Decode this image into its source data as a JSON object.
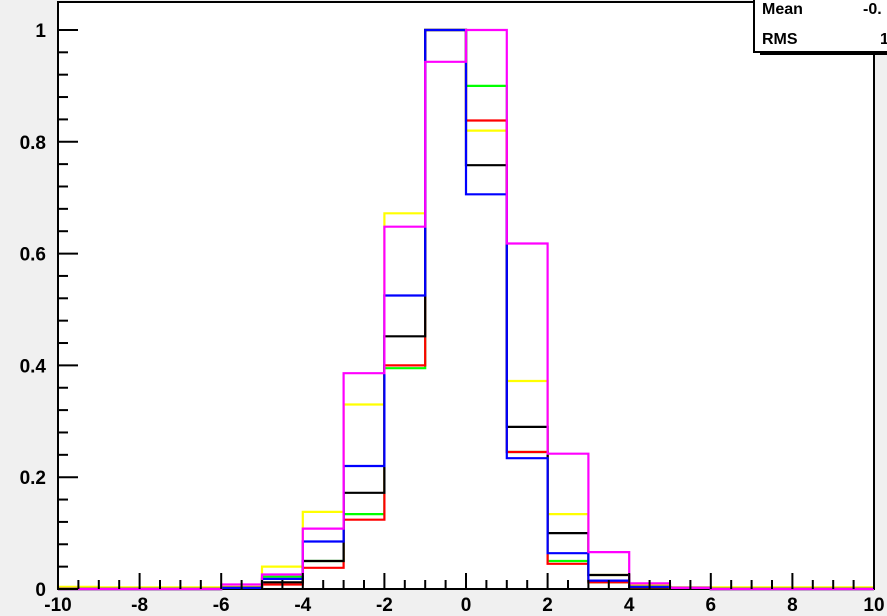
{
  "chart_data": {
    "type": "histogram",
    "title": "",
    "xlabel": "",
    "ylabel": "",
    "xlim": [
      -10,
      10
    ],
    "ylim": [
      0,
      1.05
    ],
    "grid": false,
    "x_ticks": [
      -10,
      -8,
      -6,
      -4,
      -2,
      0,
      2,
      4,
      6,
      8,
      10
    ],
    "x_tick_labels": [
      "-10",
      "-8",
      "-6",
      "-4",
      "-2",
      "0",
      "2",
      "4",
      "6",
      "8",
      "10"
    ],
    "y_ticks": [
      0,
      0.2,
      0.4,
      0.6,
      0.8,
      1
    ],
    "y_tick_labels": [
      "0",
      "0.2",
      "0.4",
      "0.6",
      "0.8",
      "1"
    ],
    "bin_edges": [
      -10,
      -9,
      -8,
      -7,
      -6,
      -5,
      -4,
      -3,
      -2,
      -1,
      0,
      1,
      2,
      3,
      4,
      5,
      6,
      7,
      8,
      9,
      10
    ],
    "series": [
      {
        "color": "#ffff00",
        "values": [
          0.004,
          0.003,
          0.003,
          0.003,
          0.004,
          0.04,
          0.138,
          0.33,
          0.672,
          1.0,
          0.82,
          0.372,
          0.134,
          0.025,
          0.006,
          0.003,
          0.003,
          0.003,
          0.003,
          0.003
        ]
      },
      {
        "color": "#00ff00",
        "values": [
          0.0,
          0.0,
          0.0,
          0.0,
          0.002,
          0.022,
          0.05,
          0.134,
          0.395,
          1.0,
          0.9,
          0.245,
          0.05,
          0.012,
          0.003,
          0.001,
          0.0,
          0.0,
          0.0,
          0.0
        ]
      },
      {
        "color": "#ff0000",
        "values": [
          0.0,
          0.0,
          0.0,
          0.0,
          0.002,
          0.008,
          0.038,
          0.124,
          0.4,
          1.0,
          0.838,
          0.245,
          0.045,
          0.012,
          0.003,
          0.002,
          0.0,
          0.0,
          0.0,
          0.0
        ]
      },
      {
        "color": "#000000",
        "values": [
          0.0,
          0.0,
          0.0,
          0.0,
          0.002,
          0.012,
          0.05,
          0.172,
          0.452,
          1.0,
          0.758,
          0.29,
          0.1,
          0.025,
          0.004,
          0.001,
          0.0,
          0.0,
          0.0,
          0.0
        ]
      },
      {
        "color": "#0000ff",
        "values": [
          0.0,
          0.0,
          0.0,
          0.0,
          0.002,
          0.018,
          0.085,
          0.22,
          0.525,
          1.0,
          0.706,
          0.234,
          0.064,
          0.015,
          0.004,
          0.002,
          0.0,
          0.0,
          0.0,
          0.0
        ]
      },
      {
        "color": "#ff00ff",
        "values": [
          0.0,
          0.0,
          0.0,
          0.0,
          0.008,
          0.026,
          0.108,
          0.386,
          0.648,
          0.943,
          1.0,
          0.618,
          0.242,
          0.066,
          0.01,
          0.002,
          0.0,
          0.0,
          0.0,
          0.0
        ]
      }
    ]
  },
  "stats_box": {
    "mean_label": "Mean",
    "mean_value": "-0.",
    "rms_label": "RMS",
    "rms_value": "1"
  }
}
